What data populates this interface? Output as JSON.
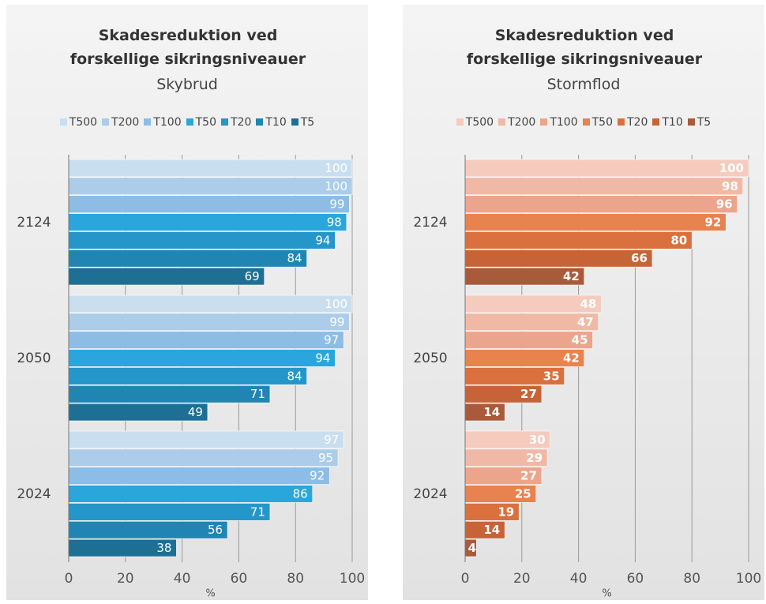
{
  "chart_data": [
    {
      "type": "bar",
      "orientation": "horizontal",
      "title": "Skadesreduktion ved forskellige sikringsniveauer",
      "subtitle": "Skybrud",
      "x_label": "%",
      "categories": [
        "2124",
        "2050",
        "2024"
      ],
      "series": [
        {
          "name": "T500",
          "color": "#c9dff0",
          "values": [
            100,
            100,
            97
          ]
        },
        {
          "name": "T200",
          "color": "#abcde9",
          "values": [
            100,
            99,
            95
          ]
        },
        {
          "name": "T100",
          "color": "#8dbde4",
          "values": [
            99,
            97,
            92
          ]
        },
        {
          "name": "T50",
          "color": "#2aa6dc",
          "values": [
            98,
            94,
            86
          ]
        },
        {
          "name": "T20",
          "color": "#2596c9",
          "values": [
            94,
            84,
            71
          ]
        },
        {
          "name": "T10",
          "color": "#2085b2",
          "values": [
            84,
            71,
            56
          ]
        },
        {
          "name": "T5",
          "color": "#1d6f94",
          "values": [
            69,
            49,
            38
          ]
        }
      ],
      "xlim": [
        0,
        100
      ],
      "xticks": [
        0,
        20,
        40,
        60,
        80,
        100
      ],
      "grid": true
    },
    {
      "type": "bar",
      "orientation": "horizontal",
      "title": "Skadesreduktion ved forskellige sikringsniveauer",
      "subtitle": "Stormflod",
      "x_label": "%",
      "categories": [
        "2124",
        "2050",
        "2024"
      ],
      "series": [
        {
          "name": "T500",
          "color": "#f5cbbd",
          "values": [
            100,
            48,
            30
          ]
        },
        {
          "name": "T200",
          "color": "#f0b9a6",
          "values": [
            98,
            47,
            29
          ]
        },
        {
          "name": "T100",
          "color": "#eca58d",
          "values": [
            96,
            45,
            27
          ]
        },
        {
          "name": "T50",
          "color": "#e8824f",
          "values": [
            92,
            42,
            25
          ]
        },
        {
          "name": "T20",
          "color": "#d9703e",
          "values": [
            80,
            35,
            19
          ]
        },
        {
          "name": "T10",
          "color": "#c66438",
          "values": [
            66,
            27,
            14
          ]
        },
        {
          "name": "T5",
          "color": "#a95a3a",
          "values": [
            42,
            14,
            4
          ]
        }
      ],
      "xlim": [
        0,
        100
      ],
      "xticks": [
        0,
        20,
        40,
        60,
        80,
        100
      ],
      "grid": true
    }
  ]
}
